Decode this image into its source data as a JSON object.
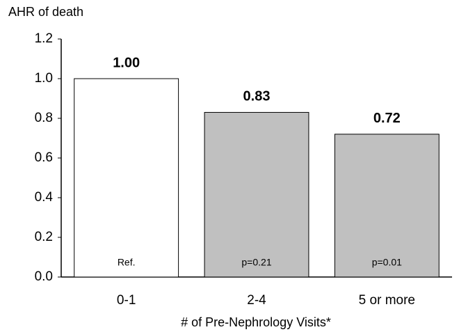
{
  "chart_data": {
    "type": "bar",
    "y_label": "AHR of death",
    "x_label": "# of Pre-Nephrology Visits*",
    "categories": [
      "0-1",
      "2-4",
      "5 or more"
    ],
    "values": [
      1.0,
      0.83,
      0.72
    ],
    "value_labels": [
      "1.00",
      "0.83",
      "0.72"
    ],
    "annotations": [
      "Ref.",
      "p=0.21",
      "p=0.01"
    ],
    "colors": [
      "#ffffff",
      "#c0c0c0",
      "#c0c0c0"
    ],
    "ylim": [
      0,
      1.2
    ],
    "yticks": [
      {
        "value": 0,
        "label": "0.0"
      },
      0.2,
      0.4,
      0.6,
      0.8,
      {
        "value": 1,
        "label": "1.0"
      },
      1.2
    ],
    "grid": false
  }
}
